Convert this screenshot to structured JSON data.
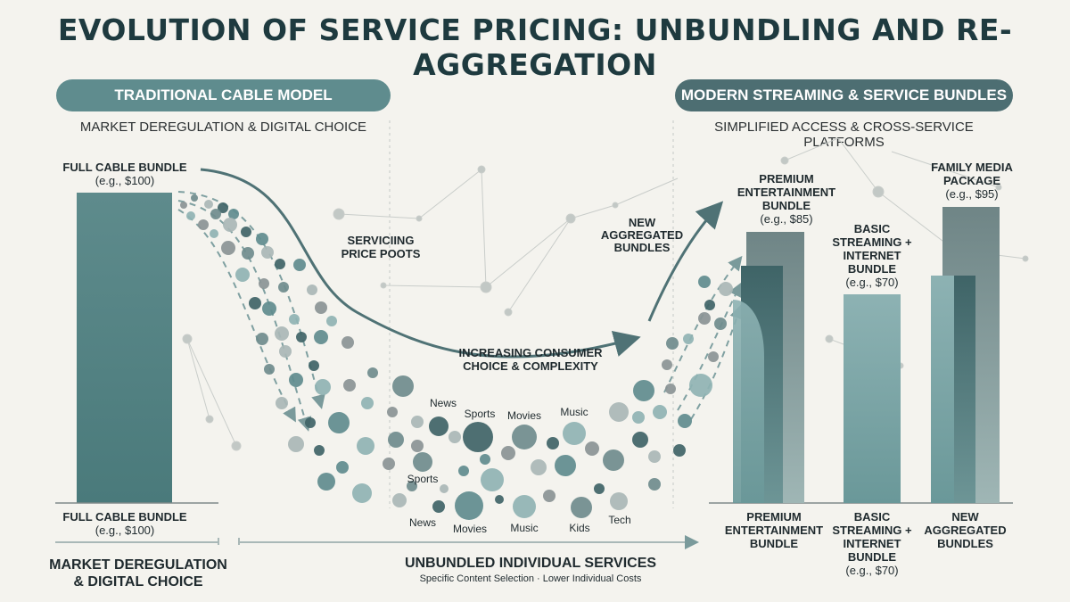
{
  "title": "EVOLUTION OF SERVICE PRICING: UNBUNDLING AND RE-AGGREGATION",
  "left_panel": {
    "header": "TRADITIONAL CABLE MODEL",
    "subheader": "MARKET DEREGULATION & DIGITAL CHOICE",
    "bar_top_label": "FULL CABLE BUNDLE",
    "bar_top_price": "(e.g., $100)",
    "bar_bottom_label": "FULL CABLE BUNDLE",
    "bar_bottom_price": "(e.g., $100)",
    "footer": "MARKET DEREGULATION\n& DIGITAL CHOICE"
  },
  "right_panel": {
    "header": "MODERN STREAMING & SERVICE BUNDLES",
    "subheader": "SIMPLIFIED ACCESS & CROSS-SERVICE PLATFORMS",
    "premium_top": "PREMIUM\nENTERTAINMENT\nBUNDLE",
    "premium_top_price": "(e.g., $85)",
    "basic_top": "BASIC\nSTREAMING +\nINTERNET\nBUNDLE",
    "basic_top_price": "(e.g., $70)",
    "family_top": "FAMILY MEDIA\nPACKAGE",
    "family_top_price": "(e.g., $95)",
    "premium_bottom": "PREMIUM\nENTERTAINMENT\nBUNDLE",
    "basic_bottom": "BASIC\nSTREAMING +\nINTERNET\nBUNDLE",
    "basic_bottom_price": "(e.g., $70)",
    "new_bottom": "NEW\nAGGREGATED\nBUNDLES"
  },
  "middle": {
    "servicing_label": "SERVICIING\nPRICE POOTS",
    "choice_label": "INCREASING CONSUMER\nCHOICE & COMPLEXITY",
    "new_bundles_label": "NEW\nAGGREGATED\nBUNDLES",
    "footer_title": "UNBUNDLED INDIVIDUAL SERVICES",
    "footer_sub": "Specific Content Selection · Lower Individual Costs",
    "service_labels": [
      "News",
      "Sports",
      "Movies",
      "Music",
      "Sports",
      "News",
      "Movies",
      "Music",
      "Kids",
      "Tech"
    ]
  },
  "colors": {
    "teal_dark": "#3e6266",
    "teal": "#5f8c8e",
    "teal_light": "#8fb3b3",
    "grey": "#8a9495",
    "background": "#f4f3ee"
  }
}
